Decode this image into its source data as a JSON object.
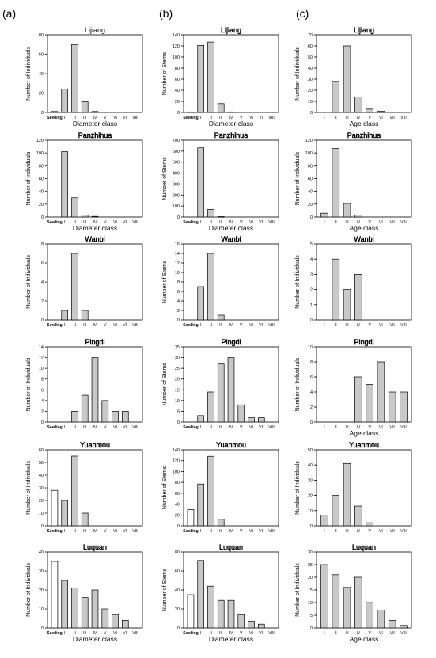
{
  "column_labels": [
    "(a)",
    "(b)",
    "(c)"
  ],
  "colors": {
    "seedling_bar": "#ffffff",
    "class_bar": "#c8c8c8",
    "axis": "#000000"
  },
  "chart_data": [
    {
      "type": "bar",
      "title": "Lijiang",
      "ylabel": "Number of Individuals",
      "xlabel": "Diameter class",
      "categories": [
        "Seeding",
        "I",
        "II",
        "III",
        "IV",
        "V",
        "VI",
        "VII",
        "VIII"
      ],
      "values": [
        1,
        24,
        70,
        11,
        1,
        0,
        0,
        0,
        0
      ],
      "ylim": [
        0,
        80
      ],
      "yticks": [
        0,
        20,
        40,
        60,
        80
      ],
      "title_style": "solid",
      "white_first": false
    },
    {
      "type": "bar",
      "title": "Lijiang",
      "ylabel": "Number of Stems",
      "xlabel": "Diameter class",
      "categories": [
        "Seeding",
        "I",
        "II",
        "III",
        "IV",
        "V",
        "VI",
        "VII",
        "VIII"
      ],
      "values": [
        1,
        121,
        127,
        16,
        1,
        0,
        0,
        0,
        0
      ],
      "ylim": [
        0,
        140
      ],
      "yticks": [
        0,
        20,
        40,
        60,
        80,
        100,
        120,
        140
      ],
      "title_style": "outline",
      "white_first": false
    },
    {
      "type": "bar",
      "title": "Lijiang",
      "ylabel": "Number of Individuals",
      "xlabel": "Age class",
      "categories": [
        "I",
        "II",
        "III",
        "IV",
        "V",
        "VI",
        "VII",
        "VIII"
      ],
      "values": [
        0,
        28,
        60,
        14,
        3,
        1,
        0,
        0
      ],
      "ylim": [
        0,
        70
      ],
      "yticks": [
        0,
        10,
        20,
        30,
        40,
        50,
        60,
        70
      ],
      "title_style": "outline",
      "white_first": false
    },
    {
      "type": "bar",
      "title": "Panzhihua",
      "ylabel": "Number of Individuals",
      "xlabel": "Diameter class",
      "categories": [
        "Seeding",
        "I",
        "II",
        "III",
        "IV",
        "V",
        "VI",
        "VII",
        "VIII"
      ],
      "values": [
        0,
        102,
        30,
        3,
        1,
        0,
        0,
        0,
        0
      ],
      "ylim": [
        0,
        120
      ],
      "yticks": [
        0,
        20,
        40,
        60,
        80,
        100,
        120
      ],
      "title_style": "outline",
      "white_first": false
    },
    {
      "type": "bar",
      "title": "Panzhihua",
      "ylabel": "Number of Stems",
      "xlabel": "Diameter class",
      "categories": [
        "Seeding",
        "I",
        "II",
        "III",
        "IV",
        "V",
        "VI",
        "VII",
        "VIII"
      ],
      "values": [
        0,
        630,
        70,
        4,
        0,
        0,
        0,
        0,
        0
      ],
      "ylim": [
        0,
        700
      ],
      "yticks": [
        0,
        100,
        200,
        300,
        400,
        500,
        600,
        700
      ],
      "title_style": "outline",
      "white_first": false
    },
    {
      "type": "bar",
      "title": "Panzhihua",
      "ylabel": "Number of Individuals",
      "xlabel": "Age class",
      "categories": [
        "I",
        "II",
        "III",
        "IV",
        "V",
        "VI",
        "VII",
        "VIII"
      ],
      "values": [
        6,
        107,
        21,
        3,
        0,
        0,
        0,
        0
      ],
      "ylim": [
        0,
        120
      ],
      "yticks": [
        0,
        20,
        40,
        60,
        80,
        100,
        120
      ],
      "title_style": "outline",
      "white_first": false
    },
    {
      "type": "bar",
      "title": "Wanbi",
      "ylabel": "Number of Individuals",
      "xlabel": "",
      "categories": [
        "Seeding",
        "I",
        "II",
        "III",
        "IV",
        "V",
        "VI",
        "VII",
        "VIII"
      ],
      "values": [
        0,
        1,
        7,
        1,
        0,
        0,
        0,
        0,
        0
      ],
      "ylim": [
        0,
        8
      ],
      "yticks": [
        0,
        2,
        4,
        6,
        8
      ],
      "title_style": "outline",
      "white_first": false
    },
    {
      "type": "bar",
      "title": "Wanbi",
      "ylabel": "Number of Stems",
      "xlabel": "",
      "categories": [
        "Seeding",
        "I",
        "II",
        "III",
        "IV",
        "V",
        "VI",
        "VII",
        "VIII"
      ],
      "values": [
        0,
        7,
        14,
        1,
        0,
        0,
        0,
        0,
        0
      ],
      "ylim": [
        0,
        16
      ],
      "yticks": [
        0,
        2,
        4,
        6,
        8,
        10,
        12,
        14,
        16
      ],
      "title_style": "outline",
      "white_first": false
    },
    {
      "type": "bar",
      "title": "Wanbi",
      "ylabel": "Number of Individuals",
      "xlabel": "",
      "categories": [
        "I",
        "II",
        "III",
        "IV",
        "V",
        "VI",
        "VII",
        "VIII"
      ],
      "values": [
        0,
        4,
        2,
        3,
        0,
        0,
        0,
        0
      ],
      "ylim": [
        0,
        5
      ],
      "yticks": [
        0,
        1,
        2,
        3,
        4,
        5
      ],
      "title_style": "outline",
      "white_first": false
    },
    {
      "type": "bar",
      "title": "Pingdi",
      "ylabel": "Number of Individuals",
      "xlabel": "",
      "categories": [
        "Seeding",
        "I",
        "II",
        "III",
        "IV",
        "V",
        "VI",
        "VII",
        "VIII"
      ],
      "values": [
        0,
        0,
        2,
        5,
        12,
        4,
        2,
        2,
        0
      ],
      "ylim": [
        0,
        14
      ],
      "yticks": [
        0,
        2,
        4,
        6,
        8,
        10,
        12,
        14
      ],
      "title_style": "outline",
      "white_first": false
    },
    {
      "type": "bar",
      "title": "Pingdi",
      "ylabel": "Number of Stems",
      "xlabel": "",
      "categories": [
        "Seeding",
        "I",
        "II",
        "III",
        "IV",
        "V",
        "VI",
        "VII",
        "VIII"
      ],
      "values": [
        0,
        3,
        14,
        27,
        30,
        8,
        2,
        2,
        0
      ],
      "ylim": [
        0,
        35
      ],
      "yticks": [
        0,
        5,
        10,
        15,
        20,
        25,
        30,
        35
      ],
      "title_style": "outline",
      "white_first": false
    },
    {
      "type": "bar",
      "title": "Pingdi",
      "ylabel": "Number of Individuals",
      "xlabel": "Age class",
      "categories": [
        "I",
        "II",
        "III",
        "IV",
        "V",
        "VI",
        "VII",
        "VIII"
      ],
      "values": [
        0,
        0,
        0,
        6,
        5,
        8,
        4,
        4
      ],
      "ylim": [
        0,
        10
      ],
      "yticks": [
        0,
        2,
        4,
        6,
        8,
        10
      ],
      "title_style": "outline",
      "white_first": false
    },
    {
      "type": "bar",
      "title": "Yuanmou",
      "ylabel": "Number of Individuals",
      "xlabel": "",
      "categories": [
        "Seeding",
        "I",
        "II",
        "III",
        "IV",
        "V",
        "VI",
        "VII",
        "VIII"
      ],
      "values": [
        28,
        20,
        55,
        10,
        0,
        0,
        0,
        0,
        0
      ],
      "ylim": [
        0,
        60
      ],
      "yticks": [
        0,
        10,
        20,
        30,
        40,
        50,
        60
      ],
      "title_style": "outline",
      "white_first": true
    },
    {
      "type": "bar",
      "title": "Yuanmou",
      "ylabel": "Number of Stems",
      "xlabel": "",
      "categories": [
        "Seeding",
        "I",
        "II",
        "III",
        "IV",
        "V",
        "VI",
        "VII",
        "VIII"
      ],
      "values": [
        30,
        77,
        128,
        12,
        0,
        0,
        0,
        0,
        0
      ],
      "ylim": [
        0,
        140
      ],
      "yticks": [
        0,
        20,
        40,
        60,
        80,
        100,
        120,
        140
      ],
      "title_style": "outline",
      "white_first": true
    },
    {
      "type": "bar",
      "title": "Yuanmou",
      "ylabel": "Number of Individuals",
      "xlabel": "",
      "categories": [
        "I",
        "II",
        "III",
        "IV",
        "V",
        "VI",
        "VII",
        "VIII"
      ],
      "values": [
        7,
        20,
        41,
        13,
        2,
        0,
        0,
        0
      ],
      "ylim": [
        0,
        50
      ],
      "yticks": [
        0,
        10,
        20,
        30,
        40,
        50
      ],
      "title_style": "outline",
      "white_first": false
    },
    {
      "type": "bar",
      "title": "Luquan",
      "ylabel": "Number of Individuals",
      "xlabel": "Diameter class",
      "categories": [
        "Seeding",
        "I",
        "II",
        "III",
        "IV",
        "V",
        "VI",
        "VII",
        "VIII"
      ],
      "values": [
        35,
        25,
        21,
        16,
        20,
        10,
        7,
        4,
        0
      ],
      "ylim": [
        0,
        40
      ],
      "yticks": [
        0,
        10,
        20,
        30,
        40
      ],
      "title_style": "outline",
      "white_first": true
    },
    {
      "type": "bar",
      "title": "Luquan",
      "ylabel": "Number of Stems",
      "xlabel": "Diameter class",
      "categories": [
        "Seeding",
        "I",
        "II",
        "III",
        "IV",
        "V",
        "VI",
        "VII",
        "VIII"
      ],
      "values": [
        35,
        71,
        44,
        29,
        29,
        14,
        7,
        4,
        0
      ],
      "ylim": [
        0,
        80
      ],
      "yticks": [
        0,
        20,
        40,
        60,
        80
      ],
      "title_style": "outline",
      "white_first": true
    },
    {
      "type": "bar",
      "title": "Luquan",
      "ylabel": "Number of Individuals",
      "xlabel": "Age class",
      "categories": [
        "I",
        "II",
        "III",
        "IV",
        "V",
        "VI",
        "VII",
        "VIII"
      ],
      "values": [
        25,
        21,
        16,
        20,
        10,
        7,
        3,
        1
      ],
      "ylim": [
        0,
        30
      ],
      "yticks": [
        0,
        5,
        10,
        15,
        20,
        25,
        30
      ],
      "title_style": "outline",
      "white_first": false
    }
  ]
}
